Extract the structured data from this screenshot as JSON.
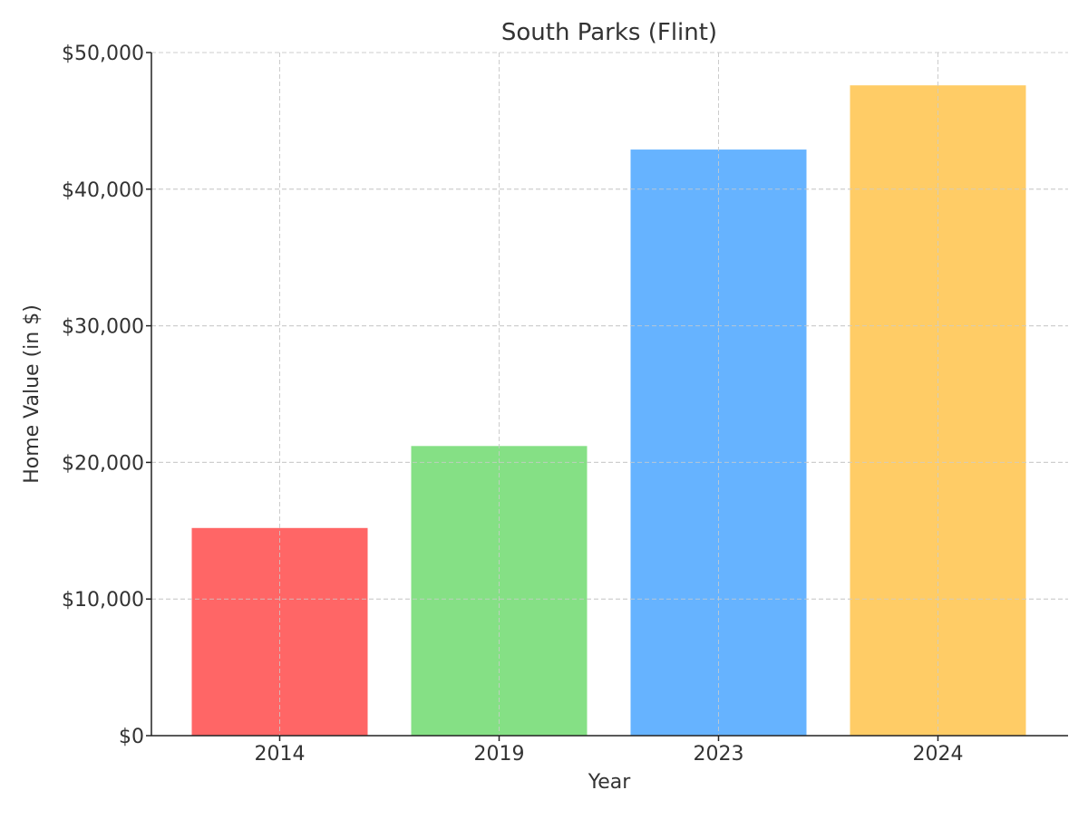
{
  "chart_data": {
    "type": "bar",
    "title": "South Parks (Flint)",
    "xlabel": "Year",
    "ylabel": "Home Value (in $)",
    "categories": [
      "2014",
      "2019",
      "2023",
      "2024"
    ],
    "values": [
      15200,
      21200,
      42900,
      47600
    ],
    "colors": [
      "#ff6666",
      "#85e085",
      "#66b3ff",
      "#ffcc66"
    ],
    "ylim": [
      0,
      50000
    ],
    "yticks": [
      0,
      10000,
      20000,
      30000,
      40000,
      50000
    ],
    "ytick_labels": [
      "$0",
      "$10,000",
      "$20,000",
      "$30,000",
      "$40,000",
      "$50,000"
    ],
    "grid": true,
    "legend": false
  }
}
